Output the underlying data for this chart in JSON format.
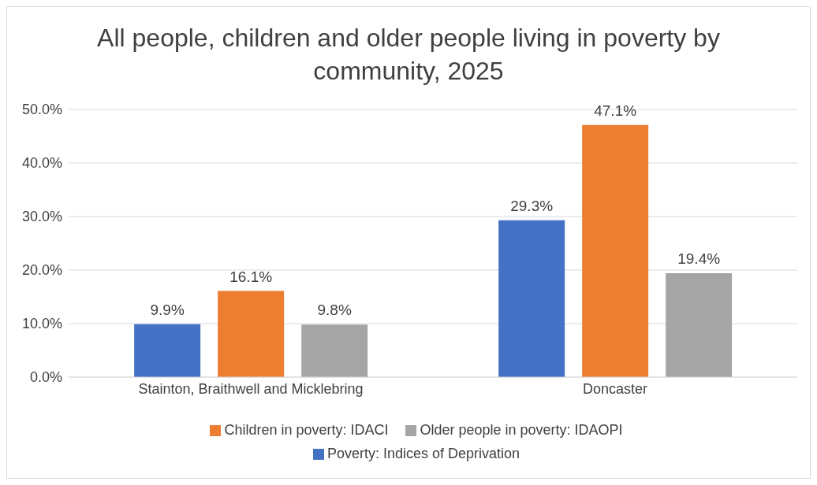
{
  "chart_data": {
    "type": "bar",
    "title": "All people, children and older people living in poverty by community, 2025",
    "categories": [
      "Stainton, Braithwell and Micklebring",
      "Doncaster"
    ],
    "series": [
      {
        "name": "Poverty: Indices of Deprivation",
        "color": "#4472c4",
        "values": [
          9.9,
          29.3
        ],
        "value_labels": [
          "9.9%",
          "29.3%"
        ]
      },
      {
        "name": "Children in poverty: IDACI",
        "color": "#ed7d31",
        "values": [
          16.1,
          47.1
        ],
        "value_labels": [
          "16.1%",
          "47.1%"
        ]
      },
      {
        "name": "Older people in poverty: IDAOPI",
        "color": "#a5a5a5",
        "values": [
          9.8,
          19.4
        ],
        "value_labels": [
          "9.8%",
          "19.4%"
        ]
      }
    ],
    "ylim": [
      0,
      50
    ],
    "yticks": [
      {
        "value": 0,
        "label": "0.0%"
      },
      {
        "value": 10,
        "label": "10.0%"
      },
      {
        "value": 20,
        "label": "20.0%"
      },
      {
        "value": 30,
        "label": "30.0%"
      },
      {
        "value": 40,
        "label": "40.0%"
      },
      {
        "value": 50,
        "label": "50.0%"
      }
    ],
    "grid": "y",
    "legend": "bottom"
  }
}
